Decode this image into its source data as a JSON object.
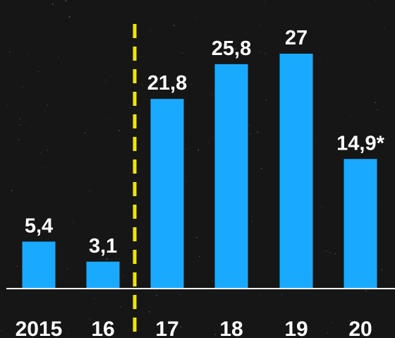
{
  "chart_data": {
    "type": "bar",
    "categories": [
      "2015",
      "16",
      "17",
      "18",
      "19",
      "20"
    ],
    "values": [
      5.4,
      3.1,
      21.8,
      25.8,
      27,
      14.9
    ],
    "data_labels": [
      "5,4",
      "3,1",
      "21,8",
      "25,8",
      "27",
      "14,9*"
    ],
    "ylim": [
      0,
      30
    ],
    "grid": false,
    "legend": "none",
    "title": "",
    "xlabel": "",
    "ylabel": "",
    "divider_after_category": "16",
    "colors": {
      "background": "#161616",
      "bar": "#19aaff",
      "baseline": "#ffffff",
      "divider": "#f2e600",
      "text": "#ffffff"
    }
  }
}
